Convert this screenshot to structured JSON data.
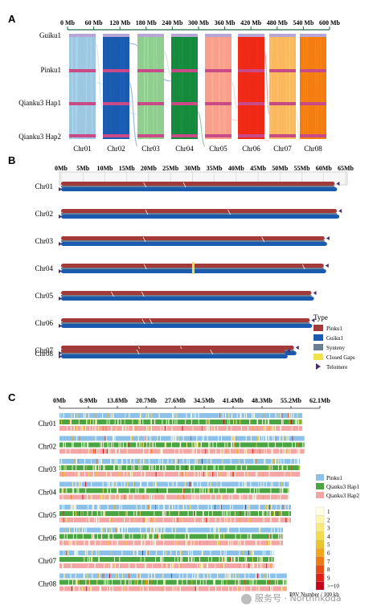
{
  "panels": [
    "A",
    "B",
    "C"
  ],
  "panel_a": {
    "type": "synteny-ribbon",
    "x_ticks": [
      "0 Mb",
      "60 Mb",
      "120 Mb",
      "180 Mb",
      "240 Mb",
      "300 Mb",
      "360 Mb",
      "420 Mb",
      "480 Mb",
      "540 Mb",
      "600 Mb"
    ],
    "genomes": [
      "Guiku1",
      "Pinku1",
      "Qianku3 Hap1",
      "Qianku3 Hap2"
    ],
    "chromosomes": [
      "Chr01",
      "Chr02",
      "Chr03",
      "Chr04",
      "Chr05",
      "Chr06",
      "Chr07",
      "Chr08"
    ],
    "chromosome_colors": [
      "#9ec8e2",
      "#1a5bb0",
      "#8fce8f",
      "#168a3c",
      "#f9a08c",
      "#ee2a16",
      "#fbb85e",
      "#f47d12"
    ],
    "genome_band_colors": [
      "#b7a6d6",
      "#c94a86",
      "#c94a86",
      "#c94a86"
    ]
  },
  "panel_b": {
    "type": "alignment-bars",
    "x_ticks": [
      "0Mb",
      "5Mb",
      "10Mb",
      "15Mb",
      "20Mb",
      "25Mb",
      "30Mb",
      "35Mb",
      "40Mb",
      "45Mb",
      "50Mb",
      "55Mb",
      "60Mb",
      "65Mb"
    ],
    "xlim_mb": [
      0,
      65
    ],
    "chromosomes": [
      {
        "name": "Chr01",
        "length_mb": 62.5
      },
      {
        "name": "Chr02",
        "length_mb": 63.0
      },
      {
        "name": "Chr03",
        "length_mb": 60.2
      },
      {
        "name": "Chr04",
        "length_mb": 60.0
      },
      {
        "name": "Chr05",
        "length_mb": 57.2
      },
      {
        "name": "Chr06",
        "length_mb": 56.8
      },
      {
        "name": "Chr07",
        "length_mb": 53.2
      },
      {
        "name": "Chr08",
        "length_mb": 51.2
      }
    ],
    "closed_gaps": [
      {
        "chr": "Chr04",
        "pos_mb": 30.2
      }
    ],
    "legend": {
      "title": "Type",
      "items": [
        {
          "label": "Pinku1",
          "color": "#a33a3a"
        },
        {
          "label": "Guiku1",
          "color": "#1a5bb0"
        },
        {
          "label": "Synteny",
          "color": "#6a7f95"
        },
        {
          "label": "Closed Gaps",
          "color": "#f2e24a"
        },
        {
          "label": "Telomere",
          "color": "#4a2d6e"
        }
      ]
    }
  },
  "panel_c": {
    "type": "heatmap",
    "x_ticks": [
      "0Mb",
      "6.9Mb",
      "13.8Mb",
      "20.7Mb",
      "27.6Mb",
      "34.5Mb",
      "41.4Mb",
      "48.3Mb",
      "55.2Mb",
      "62.1Mb"
    ],
    "xlim_mb": [
      0,
      62.1
    ],
    "chromosomes": [
      {
        "name": "Chr01",
        "length_mb": 57.9
      },
      {
        "name": "Chr02",
        "length_mb": 58.4
      },
      {
        "name": "Chr03",
        "length_mb": 57.3
      },
      {
        "name": "Chr04",
        "length_mb": 54.7
      },
      {
        "name": "Chr05",
        "length_mb": 55.2
      },
      {
        "name": "Chr06",
        "length_mb": 53.3
      },
      {
        "name": "Chr07",
        "length_mb": 51.1
      },
      {
        "name": "Chr08",
        "length_mb": 54.2
      }
    ],
    "tracks": [
      {
        "name": "Pinku1",
        "color": "#8ec1ea"
      },
      {
        "name": "Qianku3 Hap1",
        "color": "#4aa542"
      },
      {
        "name": "Qianku3 Hap2",
        "color": "#f4a6a6"
      }
    ],
    "colorbar": {
      "title": "PAV Number / 100 kb",
      "labels": [
        "1",
        "2",
        "3",
        "4",
        "5",
        "6",
        "7",
        "8",
        "9",
        ">=10"
      ],
      "colors": [
        "#ffffe8",
        "#fff7b0",
        "#f7ec7a",
        "#f1dc4a",
        "#eac52a",
        "#f2a618",
        "#ef7b10",
        "#e84a12",
        "#e01e16",
        "#c4001a"
      ]
    }
  },
  "watermark": "服务号 · Northnkoda"
}
